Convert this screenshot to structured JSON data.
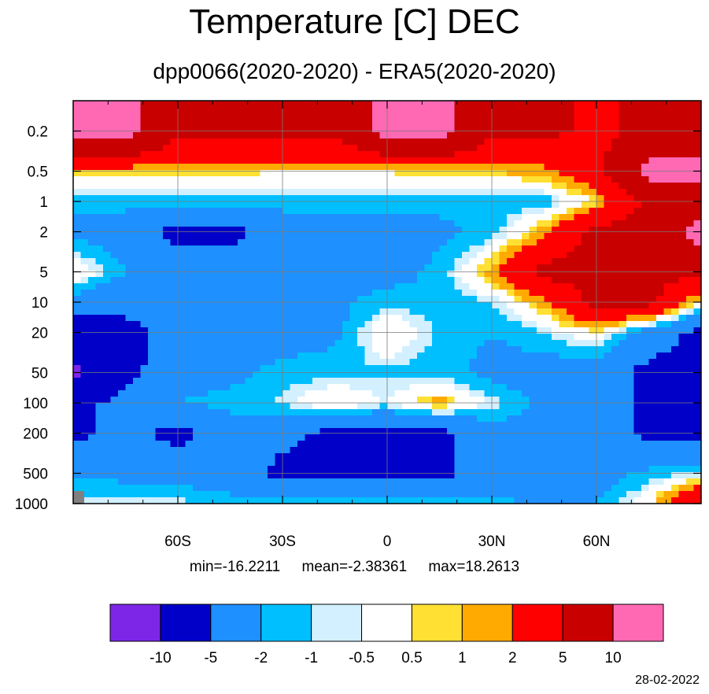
{
  "chart_data": {
    "type": "heatmap",
    "title": "Temperature [C] DEC",
    "subtitle": "dpp0066(2020-2020) - ERA5(2020-2020)",
    "x_axis": {
      "range": [
        -90,
        90
      ],
      "ticks": [
        -60,
        -30,
        0,
        30,
        60
      ],
      "tick_labels": [
        "60S",
        "30S",
        "0",
        "30N",
        "60N"
      ]
    },
    "y_axis": {
      "scale": "log",
      "inverted": true,
      "range": [
        1000,
        0.1
      ],
      "ticks": [
        0.2,
        0.5,
        1,
        2,
        5,
        10,
        20,
        50,
        100,
        200,
        500,
        1000
      ],
      "tick_labels": [
        "0.2",
        "0.5",
        "1",
        "2",
        "5",
        "10",
        "20",
        "50",
        "100",
        "200",
        "500",
        "1000"
      ]
    },
    "grid": true,
    "stats": {
      "min": "min=-16.2211",
      "mean": "mean=-2.38361",
      "max": "max=18.2613"
    },
    "colorbar": {
      "placement": "bottom",
      "levels": [
        "-10",
        "-5",
        "-2",
        "-1",
        "-0.5",
        "0.5",
        "1",
        "2",
        "5",
        "10"
      ],
      "colors": [
        "#7d26e8",
        "#0000c8",
        "#1e90ff",
        "#00bfff",
        "#d2f0ff",
        "#ffffff",
        "#ffe033",
        "#ffaa00",
        "#ff0000",
        "#c80000",
        "#ff69b4"
      ]
    },
    "field": {
      "lats": [
        -90,
        -75,
        -60,
        -45,
        -30,
        -15,
        0,
        15,
        30,
        45,
        60,
        75,
        90
      ],
      "pressures": [
        0.2,
        0.5,
        1,
        2,
        5,
        10,
        20,
        50,
        100,
        200,
        500,
        1000
      ],
      "values": [
        [
          12,
          12,
          6,
          6,
          6,
          6,
          12,
          12,
          6,
          6,
          4,
          6,
          6
        ],
        [
          1,
          1,
          0.7,
          0.7,
          0.6,
          0.6,
          0.6,
          0.8,
          1,
          1.5,
          4,
          12,
          12
        ],
        [
          -1.5,
          -1.5,
          -1.5,
          -1.5,
          -1.5,
          -1.5,
          -1.5,
          -1.5,
          -1.5,
          -1.5,
          0.6,
          6,
          6
        ],
        [
          -2.5,
          -3,
          -6,
          -6,
          -3,
          -2.5,
          -2.5,
          -2.5,
          -1.5,
          1.5,
          6,
          6,
          12
        ],
        [
          0.7,
          -2,
          -3,
          -3,
          -3,
          -3,
          -3,
          -1.5,
          1.5,
          6,
          6,
          6,
          6
        ],
        [
          -3,
          -4,
          -4,
          -3,
          -3,
          -2.5,
          -1.2,
          -1.5,
          -1,
          1.5,
          6,
          6,
          0
        ],
        [
          -8,
          -6,
          -4,
          -3,
          -3,
          -2.5,
          0.7,
          -1.2,
          -2,
          -1,
          0.5,
          -3,
          -6
        ],
        [
          -11,
          -6,
          -3,
          -2.5,
          -1.5,
          -1.2,
          -1.2,
          -1.5,
          -2.5,
          -3,
          -3,
          -6,
          -6
        ],
        [
          -6,
          -4,
          -2,
          -1.5,
          -0.8,
          0.6,
          -0.5,
          1.5,
          -0.6,
          -2.5,
          -3,
          -6,
          -6
        ],
        [
          -6,
          -4,
          -6,
          -3,
          -4,
          -6,
          -6,
          -6,
          -3,
          -2.5,
          -3,
          -6,
          -6
        ],
        [
          -2.5,
          -2.5,
          -3,
          -3,
          -6,
          -6,
          -6,
          -6,
          -3,
          -2.5,
          -3,
          -1.5,
          -1
        ],
        [
          -0.5,
          -0.7,
          -0.7,
          -1.5,
          -1.5,
          -1.5,
          -1.5,
          -1.5,
          -1.5,
          -2.5,
          -2,
          0.3,
          6
        ]
      ]
    }
  },
  "footer": {
    "date": "28-02-2022"
  }
}
